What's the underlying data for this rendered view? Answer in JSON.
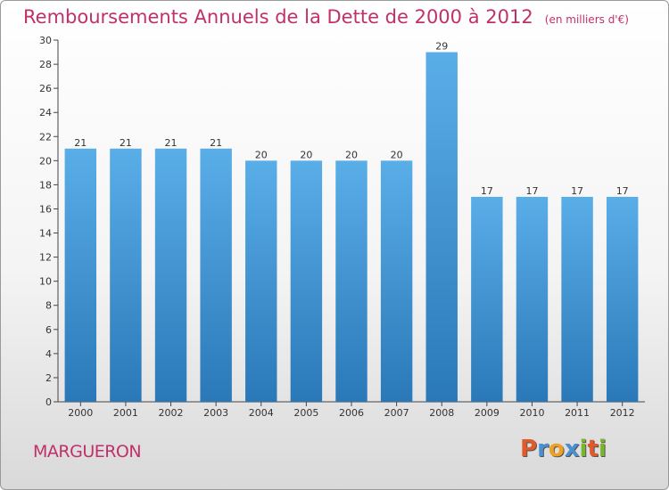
{
  "title": "Remboursements Annuels de la Dette de 2000 à 2012",
  "unit": "(en milliers d'€)",
  "commune": "MARGUERON",
  "logo": {
    "letters": [
      "P",
      "r",
      "o",
      "x",
      "i",
      "t",
      "i"
    ],
    "colors": [
      "#e05a2a",
      "#4a90d0",
      "#f0a020",
      "#4a90d0",
      "#7ab530",
      "#e05a2a",
      "#7ab530"
    ]
  },
  "colors": {
    "bar_top": "#5aaee8",
    "bar_bottom": "#2a78b8",
    "title": "#c0306a"
  },
  "chart_data": {
    "type": "bar",
    "categories": [
      "2000",
      "2001",
      "2002",
      "2003",
      "2004",
      "2005",
      "2006",
      "2007",
      "2008",
      "2009",
      "2010",
      "2011",
      "2012"
    ],
    "values": [
      21,
      21,
      21,
      21,
      20,
      20,
      20,
      20,
      29,
      17,
      17,
      17,
      17
    ],
    "data_labels": [
      "21",
      "21",
      "21",
      "21",
      "20",
      "20",
      "20",
      "20",
      "29",
      "17",
      "17",
      "17",
      "17"
    ],
    "ylim": [
      0,
      30
    ],
    "yticks": [
      0,
      2,
      4,
      6,
      8,
      10,
      12,
      14,
      16,
      18,
      20,
      22,
      24,
      26,
      28,
      30
    ],
    "grid": false,
    "legend": "none"
  }
}
